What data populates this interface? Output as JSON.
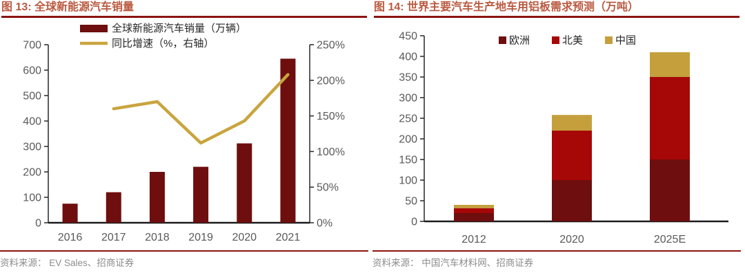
{
  "page": {
    "background": "#ffffff"
  },
  "styles": {
    "title_color": "#BA5A40",
    "rule_color": "#8B1410",
    "axis_color": "#262626",
    "tick_label_color": "#595959",
    "source_text_color": "#8C8C8C"
  },
  "chart_data": [
    {
      "type": "bar",
      "subtype": "bars-with-line-dual-axis",
      "title": "图 13:  全球新能源汽车销量",
      "categories": [
        "2016",
        "2017",
        "2018",
        "2019",
        "2020",
        "2021"
      ],
      "series": [
        {
          "name": "全球新能源汽车销量（万辆）",
          "kind": "bar",
          "axis": "left",
          "color": "#6E0E0E",
          "values": [
            75,
            120,
            200,
            220,
            312,
            645
          ]
        },
        {
          "name": "同比增速（%，右轴）",
          "kind": "line",
          "axis": "right",
          "color": "#C9A53F",
          "values": [
            null,
            160,
            170,
            112,
            143,
            208
          ]
        }
      ],
      "left_axis": {
        "min": 0,
        "max": 700,
        "step": 100,
        "suffix": ""
      },
      "right_axis": {
        "min": 0,
        "max": 250,
        "step": 50,
        "suffix": "%"
      },
      "legend_position": "top",
      "grid": false,
      "source": "资料来源：  EV Sales、招商证券"
    },
    {
      "type": "bar",
      "subtype": "stacked",
      "title": "图 14:  世界主要汽车生产地车用铝板需求预测（万吨）",
      "categories": [
        "2012",
        "2020",
        "2025E"
      ],
      "series": [
        {
          "name": "欧洲",
          "color": "#6E0E0E",
          "values": [
            20,
            100,
            150
          ]
        },
        {
          "name": "北美",
          "color": "#A60707",
          "values": [
            12,
            120,
            200
          ]
        },
        {
          "name": "中国",
          "color": "#C49F3C",
          "values": [
            8,
            38,
            60
          ]
        }
      ],
      "y_axis": {
        "min": 0,
        "max": 450,
        "step": 50,
        "suffix": ""
      },
      "legend_position": "top",
      "grid": false,
      "source": "资料来源：  中国汽车材料网、招商证券"
    }
  ]
}
